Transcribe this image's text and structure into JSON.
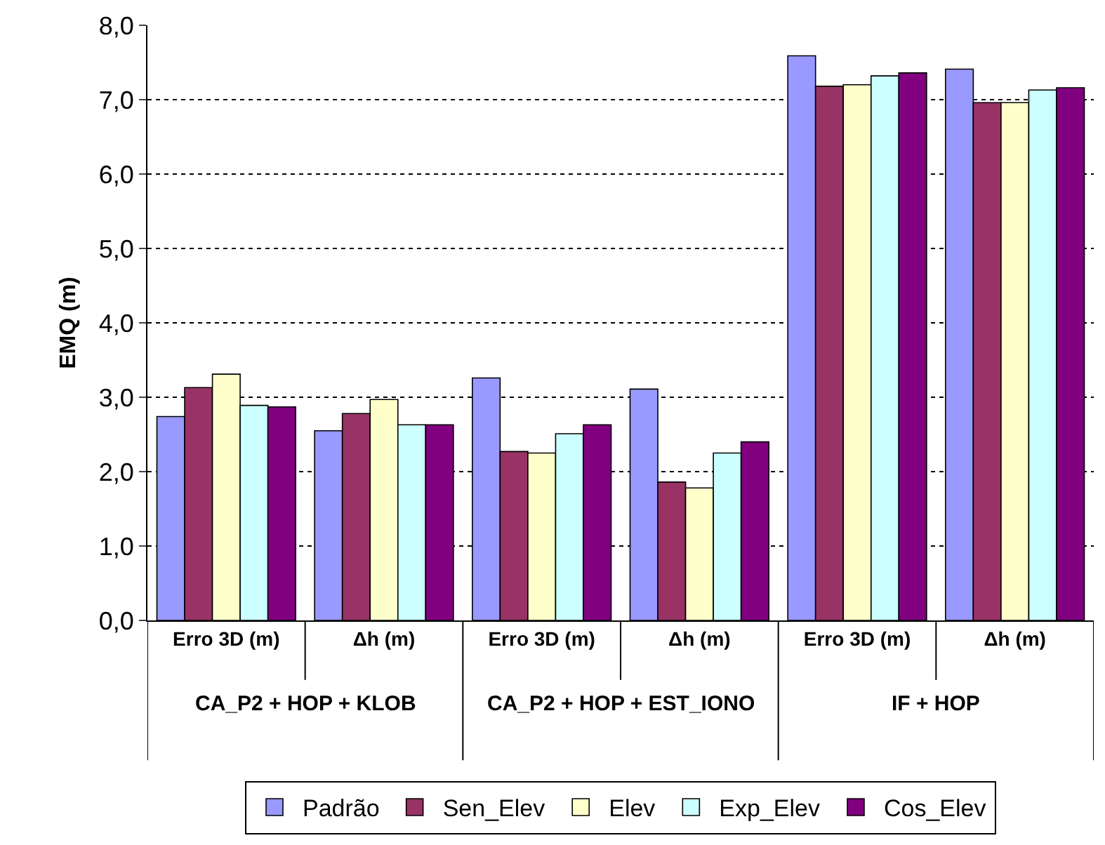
{
  "chart_data": {
    "type": "bar",
    "ylabel": "EMQ (m)",
    "categories": [
      "Erro 3D (m)",
      "Δh (m)",
      "Erro 3D (m)",
      "Δh (m)",
      "Erro 3D (m)",
      "Δh (m)"
    ],
    "annotations": [
      "CA_P2 + HOP + KLOB",
      "CA_P2 + HOP + EST_IONO",
      "IF + HOP"
    ],
    "series": [
      {
        "name": "Padrão",
        "color": "#9999ff",
        "values": [
          2.74,
          2.55,
          3.26,
          3.11,
          7.59,
          7.41
        ]
      },
      {
        "name": "Sen_Elev",
        "color": "#993366",
        "values": [
          3.13,
          2.78,
          2.27,
          1.86,
          7.18,
          6.96
        ]
      },
      {
        "name": "Elev",
        "color": "#ffffcc",
        "values": [
          3.31,
          2.97,
          2.25,
          1.78,
          7.2,
          6.96
        ]
      },
      {
        "name": "Exp_Elev",
        "color": "#ccffff",
        "values": [
          2.89,
          2.63,
          2.51,
          2.25,
          7.32,
          7.13
        ]
      },
      {
        "name": "Cos_Elev",
        "color": "#800080",
        "values": [
          2.87,
          2.63,
          2.63,
          2.4,
          7.36,
          7.16
        ]
      }
    ],
    "ylim": [
      0,
      8
    ],
    "yticks": [
      {
        "value": 0,
        "label": "0,0"
      },
      {
        "value": 1,
        "label": "1,0"
      },
      {
        "value": 2,
        "label": "2,0"
      },
      {
        "value": 3,
        "label": "3,0"
      },
      {
        "value": 4,
        "label": "4,0"
      },
      {
        "value": 5,
        "label": "5,0"
      },
      {
        "value": 6,
        "label": "6,0"
      },
      {
        "value": 7,
        "label": "7,0"
      },
      {
        "value": 8,
        "label": "8,0"
      }
    ],
    "grid": "y",
    "legend": "bottom"
  }
}
